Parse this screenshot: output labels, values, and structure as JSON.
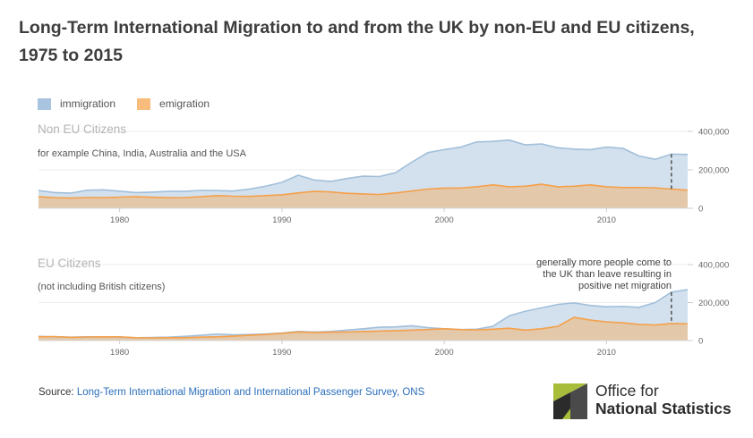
{
  "title": "Long-Term International Migration to and from the UK by non-EU and EU citizens, 1975 to 2015",
  "legend": {
    "immigration": "immigration",
    "emigration": "emigration",
    "immigration_color": "#a9c4de",
    "emigration_color": "#f8bc7c"
  },
  "source": {
    "prefix": "Source: ",
    "link": "Long-Term International Migration and International Passenger Survey, ONS"
  },
  "logo": {
    "line1": "Office for",
    "line2": "National Statistics",
    "icon": "ons-logo-icon"
  },
  "chart_data": [
    {
      "type": "area",
      "title": "Non EU Citizens",
      "subtitle": "for example China, India, Australia and the USA",
      "x_ticks": [
        1980,
        1990,
        2000,
        2010
      ],
      "y_ticks": [
        "0",
        "200,000",
        "400,000"
      ],
      "ylim": [
        0,
        400000
      ],
      "xlim": [
        1975,
        2015
      ],
      "colors": {
        "immigration_fill": "#d3e1ee",
        "immigration_line": "#a2bfda",
        "emigration_fill": "#e5c5a2",
        "emigration_line": "#f5a04a"
      },
      "x": [
        1975,
        1976,
        1977,
        1978,
        1979,
        1980,
        1981,
        1982,
        1983,
        1984,
        1985,
        1986,
        1987,
        1988,
        1989,
        1990,
        1991,
        1992,
        1993,
        1994,
        1995,
        1996,
        1997,
        1998,
        1999,
        2000,
        2001,
        2002,
        2003,
        2004,
        2005,
        2006,
        2007,
        2008,
        2009,
        2010,
        2011,
        2012,
        2013,
        2014,
        2015
      ],
      "series": [
        {
          "name": "immigration",
          "values": [
            92000,
            82000,
            79000,
            94000,
            96000,
            89000,
            82000,
            84000,
            88000,
            88000,
            93000,
            92000,
            90000,
            100000,
            115000,
            135000,
            172000,
            147000,
            140000,
            155000,
            167000,
            165000,
            185000,
            240000,
            290000,
            305000,
            318000,
            345000,
            348000,
            355000,
            330000,
            335000,
            315000,
            308000,
            305000,
            318000,
            312000,
            272000,
            255000,
            282000,
            280000
          ]
        },
        {
          "name": "emigration",
          "values": [
            60000,
            55000,
            53000,
            56000,
            55000,
            58000,
            60000,
            57000,
            55000,
            56000,
            60000,
            66000,
            63000,
            62000,
            66000,
            70000,
            80000,
            88000,
            85000,
            78000,
            75000,
            72000,
            80000,
            90000,
            100000,
            105000,
            105000,
            112000,
            122000,
            112000,
            115000,
            125000,
            112000,
            115000,
            122000,
            112000,
            108000,
            108000,
            106000,
            100000,
            94000
          ]
        }
      ],
      "marker_year": 2014
    },
    {
      "type": "area",
      "title": "EU Citizens",
      "subtitle": "(not including British citizens)",
      "annotation": [
        "generally more people come to",
        "the UK than leave resulting in",
        "positive net migration"
      ],
      "x_ticks": [
        1980,
        1990,
        2000,
        2010
      ],
      "y_ticks": [
        "0",
        "200,000",
        "400,000"
      ],
      "ylim": [
        0,
        400000
      ],
      "xlim": [
        1975,
        2015
      ],
      "colors": {
        "immigration_fill": "#d3e1ee",
        "immigration_line": "#a2bfda",
        "emigration_fill": "#e5c5a2",
        "emigration_line": "#f5a04a"
      },
      "x": [
        1975,
        1976,
        1977,
        1978,
        1979,
        1980,
        1981,
        1982,
        1983,
        1984,
        1985,
        1986,
        1987,
        1988,
        1989,
        1990,
        1991,
        1992,
        1993,
        1994,
        1995,
        1996,
        1997,
        1998,
        1999,
        2000,
        2001,
        2002,
        2003,
        2004,
        2005,
        2006,
        2007,
        2008,
        2009,
        2010,
        2011,
        2012,
        2013,
        2014,
        2015
      ],
      "series": [
        {
          "name": "immigration",
          "values": [
            22000,
            20000,
            18000,
            20000,
            20000,
            18000,
            15000,
            16000,
            18000,
            22000,
            28000,
            34000,
            30000,
            32000,
            35000,
            40000,
            48000,
            45000,
            48000,
            55000,
            62000,
            70000,
            72000,
            78000,
            68000,
            62000,
            58000,
            60000,
            75000,
            130000,
            155000,
            172000,
            190000,
            198000,
            185000,
            178000,
            180000,
            175000,
            200000,
            255000,
            268000
          ]
        },
        {
          "name": "emigration",
          "values": [
            20000,
            21000,
            17000,
            19000,
            20000,
            20000,
            15000,
            14000,
            15000,
            15000,
            18000,
            20000,
            23000,
            28000,
            32000,
            38000,
            45000,
            42000,
            44000,
            45000,
            48000,
            50000,
            52000,
            55000,
            58000,
            62000,
            58000,
            56000,
            60000,
            65000,
            55000,
            62000,
            75000,
            122000,
            108000,
            98000,
            94000,
            85000,
            82000,
            90000,
            88000
          ]
        }
      ],
      "marker_year": 2014
    }
  ]
}
